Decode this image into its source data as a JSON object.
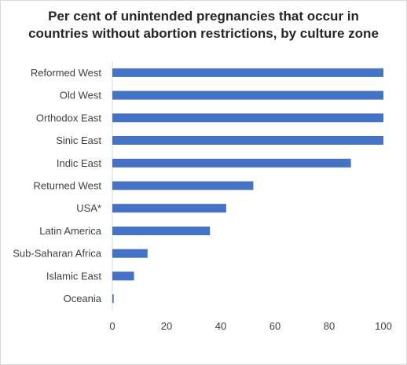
{
  "chart_data": {
    "type": "bar",
    "orientation": "horizontal",
    "title_line1": "Per cent of unintended pregnancies that occur in",
    "title_line2": "countries without abortion restrictions, by culture zone",
    "categories": [
      "Reformed West",
      "Old West",
      "Orthodox East",
      "Sinic East",
      "Indic East",
      "Returned West",
      "USA*",
      "Latin America",
      "Sub-Saharan Africa",
      "Islamic East",
      "Oceania"
    ],
    "values": [
      100,
      100,
      100,
      100,
      88,
      52,
      42,
      36,
      13,
      8,
      0.5
    ],
    "xlim": [
      0,
      100
    ],
    "xticks": [
      0,
      20,
      40,
      60,
      80,
      100
    ],
    "grid": false,
    "legend": "none",
    "bar_color": "#4472c4",
    "xlabel": "",
    "ylabel": ""
  }
}
